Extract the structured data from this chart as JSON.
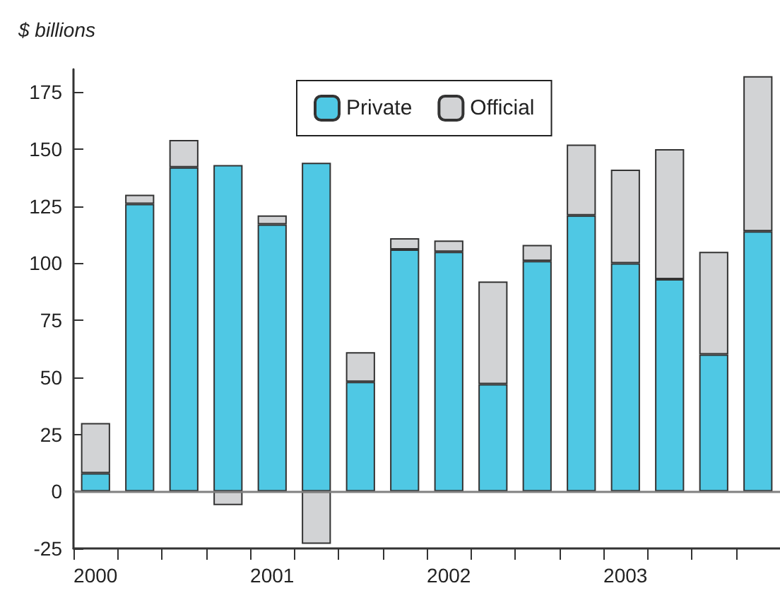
{
  "chart_data": {
    "type": "bar",
    "title": "$ billions",
    "stacked": true,
    "categories": [
      "2000",
      null,
      null,
      null,
      "2001",
      null,
      null,
      null,
      "2002",
      null,
      null,
      null,
      "2003",
      null,
      null,
      null
    ],
    "series": [
      {
        "name": "Private",
        "color": "#4fc8e4",
        "values": [
          8,
          126,
          142,
          143,
          117,
          144,
          48,
          106,
          105,
          47,
          101,
          121,
          100,
          93,
          60,
          114
        ]
      },
      {
        "name": "Official",
        "color": "#d2d3d5",
        "values": [
          22,
          4,
          12,
          -6,
          4,
          -23,
          13,
          5,
          5,
          45,
          7,
          31,
          41,
          57,
          45,
          68
        ]
      }
    ],
    "ylim": [
      -25,
      185
    ],
    "yticks": [
      -25,
      0,
      25,
      50,
      75,
      100,
      125,
      150,
      175
    ],
    "ref_lines": [
      {
        "axis": "y",
        "value": 0,
        "color": "#808080"
      }
    ],
    "grid": false,
    "legend": "top"
  }
}
